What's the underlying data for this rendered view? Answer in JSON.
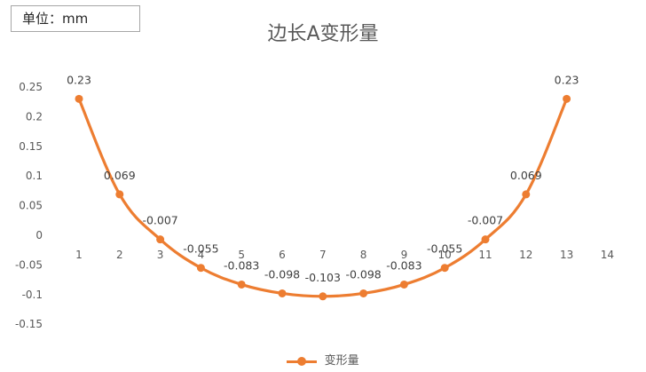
{
  "unit_label": "单位：mm",
  "chart_data": {
    "type": "line",
    "title": "边长A变形量",
    "x": [
      1,
      2,
      3,
      4,
      5,
      6,
      7,
      8,
      9,
      10,
      11,
      12,
      13
    ],
    "x_ticks": [
      "1",
      "2",
      "3",
      "4",
      "5",
      "6",
      "7",
      "8",
      "9",
      "10",
      "11",
      "12",
      "13",
      "14"
    ],
    "series": [
      {
        "name": "变形量",
        "color": "#ED7D31",
        "values": [
          0.23,
          0.069,
          -0.007,
          -0.055,
          -0.083,
          -0.098,
          -0.103,
          -0.098,
          -0.083,
          -0.055,
          -0.007,
          0.069,
          0.23
        ],
        "labels": [
          "0.23",
          "0.069",
          "-0.007",
          "-0.055",
          "-0.083",
          "-0.098",
          "-0.103",
          "-0.098",
          "-0.083",
          "-0.055",
          "-0.007",
          "0.069",
          "0.23"
        ]
      }
    ],
    "y_ticks": [
      "0.25",
      "0.2",
      "0.15",
      "0.1",
      "0.05",
      "0",
      "-0.05",
      "-0.1",
      "-0.15"
    ],
    "ylim": [
      -0.15,
      0.25
    ],
    "grid": false,
    "legend": "bottom"
  }
}
